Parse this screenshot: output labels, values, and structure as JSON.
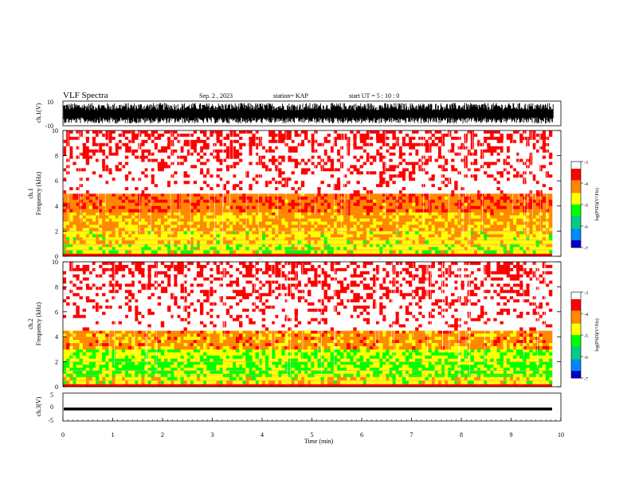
{
  "header": {
    "title": "VLF Spectra",
    "date": "Sep. 2 , 2023",
    "station": "station= KAP",
    "start": "start UT = 5 : 10 : 0"
  },
  "colors": {
    "scale": [
      "#000000",
      "#0000cc",
      "#0088ff",
      "#00cc88",
      "#00ff00",
      "#ffff00",
      "#ff8800",
      "#ff0000",
      "#ffffff"
    ],
    "waveform": "#000000",
    "background": "#ffffff"
  },
  "chart_data": [
    {
      "type": "line",
      "name": "ch1-waveform",
      "ylabel": "ch.1(V)",
      "ylim": [
        -10,
        10
      ],
      "yticks": [
        "10",
        "-10"
      ],
      "xlim": [
        0,
        10
      ],
      "note": "dense broadband waveform, amplitude mostly within ±10 V"
    },
    {
      "type": "heatmap",
      "name": "ch1-spectrogram",
      "ylabel": "ch.1\nFrequency (kHz)",
      "ylim": [
        0,
        10
      ],
      "yticks": [
        "0",
        "2",
        "4",
        "6",
        "8",
        "10"
      ],
      "xlim": [
        0,
        9.83
      ],
      "colorbar": {
        "label": "log(PSD)(V²/Hz)",
        "range": [
          -7,
          -3
        ],
        "ticks": [
          "-3",
          "-4",
          "-5",
          "-6",
          "-7"
        ]
      },
      "bands": [
        {
          "from": 0.2,
          "to": 1.0,
          "level": -4.8
        },
        {
          "from": 1.0,
          "to": 2.0,
          "level": -4.6
        },
        {
          "from": 2.0,
          "to": 3.5,
          "level": -4.3
        },
        {
          "from": 3.5,
          "to": 5.0,
          "level": -4.0
        },
        {
          "from": 5.0,
          "to": 10.0,
          "level": -3.3
        }
      ]
    },
    {
      "type": "heatmap",
      "name": "ch2-spectrogram",
      "ylabel": "ch.2\nFrequency (kHz)",
      "ylim": [
        0,
        10
      ],
      "yticks": [
        "0",
        "2",
        "4",
        "6",
        "8",
        "10"
      ],
      "xlim": [
        0,
        9.83
      ],
      "colorbar": {
        "label": "log(PSD)(V²/Hz)",
        "range": [
          -7,
          -3
        ],
        "ticks": [
          "-3",
          "-4",
          "-5",
          "-6",
          "-7"
        ]
      },
      "bands": [
        {
          "from": 0.2,
          "to": 0.8,
          "level": -4.7
        },
        {
          "from": 0.8,
          "to": 2.0,
          "level": -5.1
        },
        {
          "from": 2.0,
          "to": 3.0,
          "level": -4.9
        },
        {
          "from": 3.0,
          "to": 4.5,
          "level": -4.2
        },
        {
          "from": 4.5,
          "to": 10.0,
          "level": -3.3
        }
      ]
    },
    {
      "type": "line",
      "name": "ch3-waveform",
      "ylabel": "ch.3(V)",
      "ylim": [
        -5,
        5
      ],
      "yticks": [
        "5",
        "0",
        "-5"
      ],
      "xlim": [
        0,
        9.83
      ],
      "values_range": [
        -1.2,
        -0.2
      ],
      "xlabel": "Time (min)",
      "xticks": [
        "0",
        "1",
        "2",
        "3",
        "4",
        "5",
        "6",
        "7",
        "8",
        "9",
        "10"
      ]
    }
  ]
}
